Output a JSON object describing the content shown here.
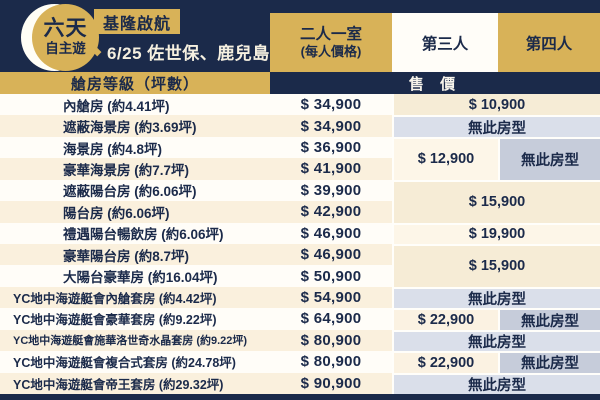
{
  "logo": {
    "line1": "六天",
    "line2": "自主遊"
  },
  "banner": {
    "badge": "基隆啟航",
    "diamond": "◆",
    "route": "6/25 佐世保、鹿兒島"
  },
  "columns": {
    "pair": "二人一室",
    "pair_sub": "(每人價格)",
    "third": "第三人",
    "fourth": "第四人"
  },
  "subheader": {
    "left": "艙房等級（坪數）",
    "right": "售 價"
  },
  "table": {
    "rows": [
      {
        "label": "內艙房 (約4.41坪)",
        "price": "$ 34,900"
      },
      {
        "label": "遮蔽海景房 (約3.69坪)",
        "price": "$ 34,900"
      },
      {
        "label": "海景房 (約4.8坪)",
        "price": "$ 36,900"
      },
      {
        "label": "豪華海景房 (約7.7坪)",
        "price": "$ 41,900"
      },
      {
        "label": "遮蔽陽台房 (約6.06坪)",
        "price": "$ 39,900"
      },
      {
        "label": "陽台房 (約6.06坪)",
        "price": "$ 42,900"
      },
      {
        "label": "禮遇陽台暢飲房 (約6.06坪)",
        "price": "$ 46,900"
      },
      {
        "label": "豪華陽台房 (約8.7坪)",
        "price": "$ 46,900"
      },
      {
        "label": "大陽台豪華房 (約16.04坪)",
        "price": "$ 50,900"
      },
      {
        "label": "YC地中海遊艇會內艙套房 (約4.42坪)",
        "price": "$ 54,900"
      },
      {
        "label": "YC地中海遊艇會豪華套房 (約9.22坪)",
        "price": "$ 64,900"
      },
      {
        "label": "YC地中海遊艇會施華洛世奇水晶套房 (約9.22坪)",
        "price": "$ 80,900"
      },
      {
        "label": "YC地中海遊艇會複合式套房 (約24.78坪)",
        "price": "$ 80,900"
      },
      {
        "label": "YC地中海遊艇會帝王套房 (約29.32坪)",
        "price": "$ 90,900"
      }
    ],
    "extra_cells": {
      "r1": "$ 10,900",
      "r2": "無此房型",
      "r34_third": "$ 12,900",
      "r34_fourth": "無此房型",
      "r56": "$ 15,900",
      "r7": "$ 19,900",
      "r89": "$ 15,900",
      "r10": "無此房型",
      "r11_third": "$ 22,900",
      "r11_fourth": "無此房型",
      "r12": "無此房型",
      "r13_third": "$ 22,900",
      "r13_fourth": "無此房型",
      "r14": "無此房型"
    }
  },
  "colors": {
    "navy": "#1b2a4a",
    "gold": "#d8b258",
    "rowWhite": "#fffdf8",
    "rowCream": "#faf0dd",
    "creamD": "#f6ecd6",
    "creamL": "#fdf6e8",
    "creamM": "#fbf2e2",
    "grayL": "#dadfea",
    "grayD": "#c6ccda"
  }
}
